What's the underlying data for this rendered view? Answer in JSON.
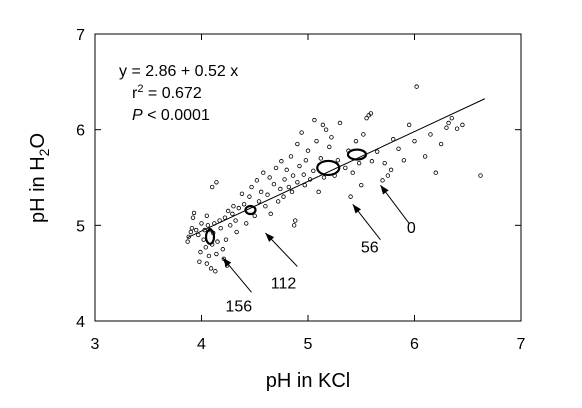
{
  "chart_data": {
    "type": "scatter",
    "title": "",
    "xlabel": "pH in KCl",
    "ylabel_parts": [
      "pH in H",
      "2",
      "O"
    ],
    "xlim": [
      3,
      7
    ],
    "ylim": [
      4,
      7
    ],
    "xticks": [
      "3",
      "4",
      "5",
      "6",
      "7"
    ],
    "yticks": [
      "4",
      "5",
      "6",
      "7"
    ],
    "grid": false,
    "legend": "none",
    "regression": {
      "intercept": 2.86,
      "slope": 0.52,
      "x_range": [
        3.87,
        6.66
      ],
      "equation": "y = 2.86 + 0.52 x",
      "r2_prefix": "r",
      "r2_sup": "2",
      "r2_suffix": " = 0.672",
      "p_symbol": "P",
      "p_suffix": " < 0.0001"
    },
    "points": [
      [
        3.87,
        4.83
      ],
      [
        3.88,
        4.88
      ],
      [
        3.9,
        4.93
      ],
      [
        3.91,
        4.97
      ],
      [
        3.92,
        5.08
      ],
      [
        3.93,
        5.13
      ],
      [
        3.95,
        4.95
      ],
      [
        3.97,
        4.9
      ],
      [
        3.98,
        4.62
      ],
      [
        3.99,
        4.72
      ],
      [
        4.0,
        5.02
      ],
      [
        4.02,
        4.85
      ],
      [
        4.03,
        4.95
      ],
      [
        4.04,
        4.77
      ],
      [
        4.05,
        4.6
      ],
      [
        4.05,
        5.1
      ],
      [
        4.06,
        5.0
      ],
      [
        4.07,
        4.68
      ],
      [
        4.08,
        4.95
      ],
      [
        4.09,
        4.55
      ],
      [
        4.1,
        5.4
      ],
      [
        4.1,
        4.8
      ],
      [
        4.11,
        4.92
      ],
      [
        4.12,
        5.02
      ],
      [
        4.13,
        4.52
      ],
      [
        4.14,
        5.45
      ],
      [
        4.14,
        4.7
      ],
      [
        4.15,
        4.83
      ],
      [
        4.17,
        5.05
      ],
      [
        4.18,
        4.97
      ],
      [
        4.2,
        4.75
      ],
      [
        4.21,
        4.65
      ],
      [
        4.22,
        5.08
      ],
      [
        4.23,
        4.85
      ],
      [
        4.24,
        4.58
      ],
      [
        4.25,
        5.15
      ],
      [
        4.27,
        5.0
      ],
      [
        4.29,
        5.12
      ],
      [
        4.3,
        5.2
      ],
      [
        4.32,
        5.05
      ],
      [
        4.33,
        4.93
      ],
      [
        4.35,
        5.18
      ],
      [
        4.38,
        5.33
      ],
      [
        4.4,
        5.22
      ],
      [
        4.42,
        5.02
      ],
      [
        4.45,
        5.3
      ],
      [
        4.47,
        5.4
      ],
      [
        4.5,
        5.1
      ],
      [
        4.52,
        5.47
      ],
      [
        4.54,
        5.25
      ],
      [
        4.56,
        5.35
      ],
      [
        4.58,
        5.55
      ],
      [
        4.6,
        5.2
      ],
      [
        4.62,
        5.32
      ],
      [
        4.64,
        5.5
      ],
      [
        4.65,
        5.12
      ],
      [
        4.68,
        5.43
      ],
      [
        4.7,
        5.6
      ],
      [
        4.72,
        5.25
      ],
      [
        4.74,
        5.38
      ],
      [
        4.75,
        5.67
      ],
      [
        4.77,
        5.3
      ],
      [
        4.78,
        5.48
      ],
      [
        4.8,
        5.58
      ],
      [
        4.82,
        5.4
      ],
      [
        4.84,
        5.72
      ],
      [
        4.85,
        5.35
      ],
      [
        4.86,
        5.52
      ],
      [
        4.87,
        5.0
      ],
      [
        4.88,
        5.05
      ],
      [
        4.9,
        5.45
      ],
      [
        4.9,
        5.85
      ],
      [
        4.92,
        5.62
      ],
      [
        4.94,
        5.97
      ],
      [
        4.96,
        5.53
      ],
      [
        4.97,
        5.42
      ],
      [
        4.98,
        5.68
      ],
      [
        5.0,
        5.78
      ],
      [
        5.02,
        5.48
      ],
      [
        5.05,
        5.57
      ],
      [
        5.06,
        6.1
      ],
      [
        5.08,
        5.88
      ],
      [
        5.1,
        5.35
      ],
      [
        5.12,
        5.7
      ],
      [
        5.14,
        6.05
      ],
      [
        5.15,
        5.5
      ],
      [
        5.17,
        6.0
      ],
      [
        5.2,
        5.82
      ],
      [
        5.22,
        5.92
      ],
      [
        5.25,
        5.52
      ],
      [
        5.28,
        5.68
      ],
      [
        5.3,
        6.07
      ],
      [
        5.35,
        5.6
      ],
      [
        5.38,
        5.78
      ],
      [
        5.4,
        5.3
      ],
      [
        5.42,
        5.55
      ],
      [
        5.45,
        5.88
      ],
      [
        5.48,
        5.65
      ],
      [
        5.5,
        5.42
      ],
      [
        5.52,
        5.95
      ],
      [
        5.55,
        6.12
      ],
      [
        5.57,
        6.15
      ],
      [
        5.59,
        6.17
      ],
      [
        5.6,
        5.67
      ],
      [
        5.65,
        5.77
      ],
      [
        5.7,
        5.47
      ],
      [
        5.72,
        5.65
      ],
      [
        5.75,
        5.52
      ],
      [
        5.78,
        5.58
      ],
      [
        5.8,
        5.9
      ],
      [
        5.85,
        5.8
      ],
      [
        5.9,
        5.68
      ],
      [
        5.95,
        6.05
      ],
      [
        6.0,
        5.88
      ],
      [
        6.02,
        6.45
      ],
      [
        6.1,
        5.72
      ],
      [
        6.15,
        5.95
      ],
      [
        6.2,
        5.55
      ],
      [
        6.25,
        5.85
      ],
      [
        6.3,
        6.02
      ],
      [
        6.32,
        6.07
      ],
      [
        6.35,
        6.12
      ],
      [
        6.4,
        6.01
      ],
      [
        6.45,
        6.05
      ],
      [
        6.62,
        5.52
      ]
    ],
    "clusters": [
      {
        "x": 4.08,
        "y": 4.88,
        "rx": 4,
        "ry": 7
      },
      {
        "x": 4.46,
        "y": 5.16,
        "rx": 5,
        "ry": 4
      },
      {
        "x": 5.19,
        "y": 5.6,
        "rx": 11,
        "ry": 7
      },
      {
        "x": 5.46,
        "y": 5.74,
        "rx": 9,
        "ry": 5
      }
    ],
    "annotations": [
      {
        "label": "0",
        "tail": [
          5.95,
          5.02
        ],
        "head": [
          5.68,
          5.42
        ],
        "text_at": [
          5.97,
          4.98
        ]
      },
      {
        "label": "56",
        "tail": [
          5.68,
          4.85
        ],
        "head": [
          5.42,
          5.22
        ],
        "text_at": [
          5.58,
          4.78
        ]
      },
      {
        "label": "112",
        "tail": [
          4.9,
          4.57
        ],
        "head": [
          4.6,
          4.92
        ],
        "text_at": [
          4.77,
          4.4
        ]
      },
      {
        "label": "156",
        "tail": [
          4.47,
          4.3
        ],
        "head": [
          4.2,
          4.66
        ],
        "text_at": [
          4.35,
          4.16
        ]
      }
    ]
  }
}
